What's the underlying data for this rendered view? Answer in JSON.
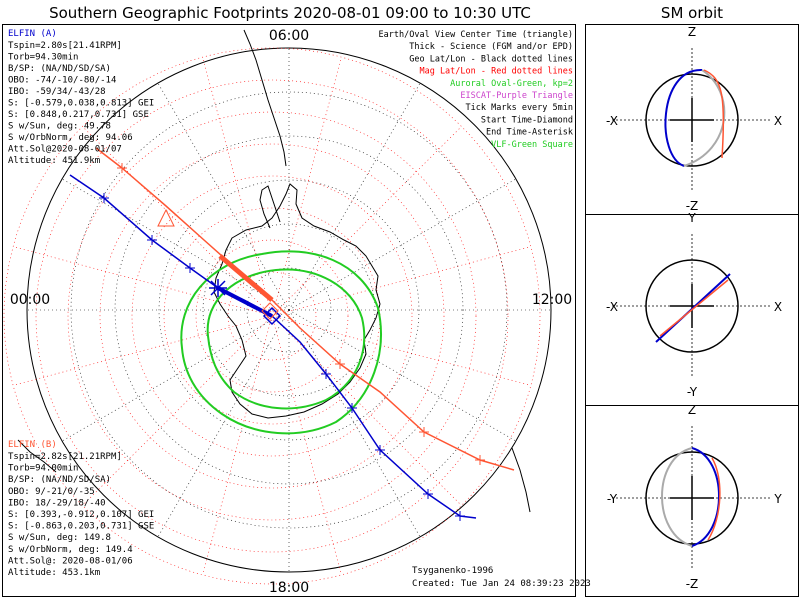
{
  "title": "Southern Geographic Footprints 2020-08-01 09:00 to 10:30 UTC",
  "orbit_title": "SM orbit",
  "map": {
    "hour_labels": {
      "top": "06:00",
      "left": "00:00",
      "right": "12:00",
      "bottom": "18:00"
    }
  },
  "elfin_a": {
    "name": "ELFIN (A)",
    "lines": [
      "Tspin=2.80s[21.41RPM]",
      "Torb=94.30min",
      "B/SP: (NA/ND/SD/SA)",
      "OBO: -74/-10/-80/-14",
      "IBO: -59/34/-43/28",
      "S: [-0.579,0.038,0.813] GEI",
      "S: [0.848,0.217,0.731] GSE",
      "S w/Sun, deg: 49.78",
      "S w/OrbNorm, deg: 94.06",
      "Att.Sol@2020-08-01/07",
      "Altitude: 451.9km"
    ]
  },
  "elfin_b": {
    "name": "ELFIN (B)",
    "lines": [
      "Tspin=2.82s[21.21RPM]",
      "Torb=94.00min",
      "B/SP: (NA/ND/SD/SA)",
      "OBO: 9/-21/0/-35",
      "IBO: 18/-29/18/-40",
      "S: [0.393,-0.912,0.107] GEI",
      "S: [-0.863,0.203,0.731] GSE",
      "S w/Sun, deg: 149.8",
      "S w/OrbNorm, deg: 149.4",
      "Att.Sol@: 2020-08-01/06",
      "Altitude: 453.1km"
    ]
  },
  "legend": [
    {
      "text": "Earth/Oval View Center Time (triangle)",
      "color": "#000000"
    },
    {
      "text": "Thick - Science (FGM and/or EPD)",
      "color": "#000000"
    },
    {
      "text": "Geo Lat/Lon - Black dotted lines",
      "color": "#000000"
    },
    {
      "text": "Mag Lat/Lon - Red dotted lines",
      "color": "#ff0000"
    },
    {
      "text": "Auroral Oval-Green, kp=2",
      "color": "#22cc22"
    },
    {
      "text": "EISCAT-Purple Triangle",
      "color": "#cc44cc"
    },
    {
      "text": "Tick Marks every 5min",
      "color": "#000000"
    },
    {
      "text": "Start Time-Diamond",
      "color": "#000000"
    },
    {
      "text": "End Time-Asterisk",
      "color": "#000000"
    },
    {
      "text": "VLF-Green Square",
      "color": "#22cc22"
    }
  ],
  "credit": "Tsyganenko-1996",
  "created": "Created: Tue Jan 24 08:39:23 2023",
  "panels": [
    {
      "top": "Z",
      "bottom": "-Z",
      "left": "-X",
      "right": "X"
    },
    {
      "top": "Y",
      "bottom": "-Y",
      "left": "-X",
      "right": "X"
    },
    {
      "top": "Z",
      "bottom": "-Z",
      "left": "-Y",
      "right": "Y"
    }
  ],
  "colors": {
    "elfin_a": "#0000cc",
    "elfin_b": "#ff5533",
    "oval": "#22cc22",
    "mag_grid": "#ff0000",
    "geo_grid": "#000000"
  }
}
